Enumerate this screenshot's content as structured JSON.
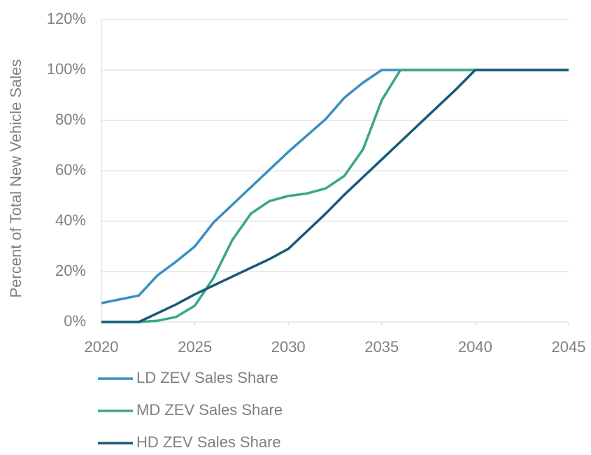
{
  "chart_data": {
    "type": "line",
    "ylabel": "Percent of Total New Vehicle Sales",
    "x": [
      2020,
      2021,
      2022,
      2023,
      2024,
      2025,
      2026,
      2027,
      2028,
      2029,
      2030,
      2031,
      2032,
      2033,
      2034,
      2035,
      2036,
      2037,
      2038,
      2039,
      2040,
      2041,
      2042,
      2043,
      2044,
      2045
    ],
    "series": [
      {
        "name": "LD ZEV Sales Share",
        "color": "#3a8fc4",
        "values": [
          7.5,
          9,
          10.5,
          18.5,
          24,
          30,
          39.5,
          46.5,
          53.5,
          60.5,
          67.5,
          74,
          80.5,
          89,
          95,
          100,
          100,
          100,
          100,
          100,
          100,
          100,
          100,
          100,
          100,
          100
        ]
      },
      {
        "name": "MD ZEV Sales Share",
        "color": "#3aa68a",
        "values": [
          0,
          0,
          0,
          0.5,
          2,
          6.5,
          17.5,
          32.5,
          43,
          48,
          50,
          51,
          53,
          58,
          68.5,
          88,
          100,
          100,
          100,
          100,
          100,
          100,
          100,
          100,
          100,
          100
        ]
      },
      {
        "name": "HD ZEV Sales Share",
        "color": "#165a78",
        "values": [
          0,
          0,
          0,
          3.5,
          7,
          11,
          14.5,
          18,
          21.5,
          25,
          29,
          36,
          43,
          50.5,
          57.5,
          64.5,
          71.5,
          78.5,
          85.5,
          92.5,
          100,
          100,
          100,
          100,
          100,
          100
        ]
      }
    ],
    "xlim": [
      2020,
      2045
    ],
    "xticks": [
      2020,
      2025,
      2030,
      2035,
      2040,
      2045
    ],
    "ylim": [
      0,
      120
    ],
    "yticks": [
      {
        "value": 0,
        "label": "0%"
      },
      {
        "value": 20,
        "label": "20%"
      },
      {
        "value": 40,
        "label": "40%"
      },
      {
        "value": 60,
        "label": "60%"
      },
      {
        "value": 80,
        "label": "80%"
      },
      {
        "value": 100,
        "label": "100%"
      },
      {
        "value": 120,
        "label": "120%"
      }
    ],
    "grid": true,
    "legend": "bottom"
  }
}
